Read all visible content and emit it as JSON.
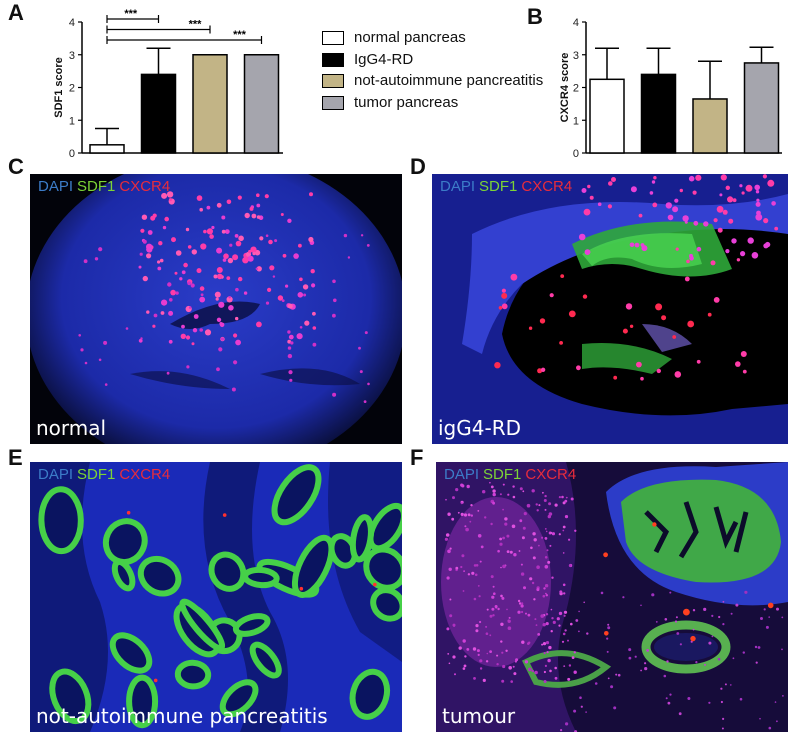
{
  "panels": {
    "A": "A",
    "B": "B",
    "C": "C",
    "D": "D",
    "E": "E",
    "F": "F"
  },
  "chart_data": [
    {
      "type": "bar",
      "panel": "A",
      "categories": [
        "normal pancreas",
        "IgG4-RD",
        "not-autoimmune pancreatitis",
        "tumor pancreas"
      ],
      "values": [
        0.25,
        2.4,
        3.0,
        3.0
      ],
      "errors": [
        0.5,
        0.8,
        0,
        0
      ],
      "ylabel": "SDF1 score",
      "ylim": [
        0,
        4
      ],
      "yticks": [
        "0",
        "1",
        "2",
        "3",
        "4"
      ],
      "significance": [
        {
          "from": 0,
          "to": 1,
          "label": "***"
        },
        {
          "from": 0,
          "to": 2,
          "label": "***"
        },
        {
          "from": 0,
          "to": 3,
          "label": "***"
        }
      ]
    },
    {
      "type": "bar",
      "panel": "B",
      "categories": [
        "normal pancreas",
        "IgG4-RD",
        "not-autoimmune pancreatitis",
        "tumor pancreas"
      ],
      "values": [
        2.25,
        2.4,
        1.65,
        2.75
      ],
      "errors": [
        0.95,
        0.8,
        1.15,
        0.48
      ],
      "ylabel": "CXCR4 score",
      "ylim": [
        0,
        4
      ],
      "yticks": [
        "0",
        "1",
        "2",
        "3",
        "4"
      ]
    }
  ],
  "legend": [
    {
      "label": "normal pancreas",
      "color": "#ffffff"
    },
    {
      "label": "IgG4-RD",
      "color": "#000000"
    },
    {
      "label": "not-autoimmune pancreatitis",
      "color": "#c2b486"
    },
    {
      "label": "tumor pancreas",
      "color": "#a5a5ad"
    }
  ],
  "stain": {
    "dapi": "DAPI",
    "sdf1": "SDF1",
    "cxcr4": "CXCR4",
    "dapi_color": "#3c7cc8",
    "sdf1_color": "#7cd436",
    "cxcr4_color": "#e82c3c"
  },
  "images": [
    {
      "panel": "C",
      "caption": "normal"
    },
    {
      "panel": "D",
      "caption": "igG4-RD"
    },
    {
      "panel": "E",
      "caption": "not-autoimmune pancreatitis"
    },
    {
      "panel": "F",
      "caption": "tumour"
    }
  ]
}
